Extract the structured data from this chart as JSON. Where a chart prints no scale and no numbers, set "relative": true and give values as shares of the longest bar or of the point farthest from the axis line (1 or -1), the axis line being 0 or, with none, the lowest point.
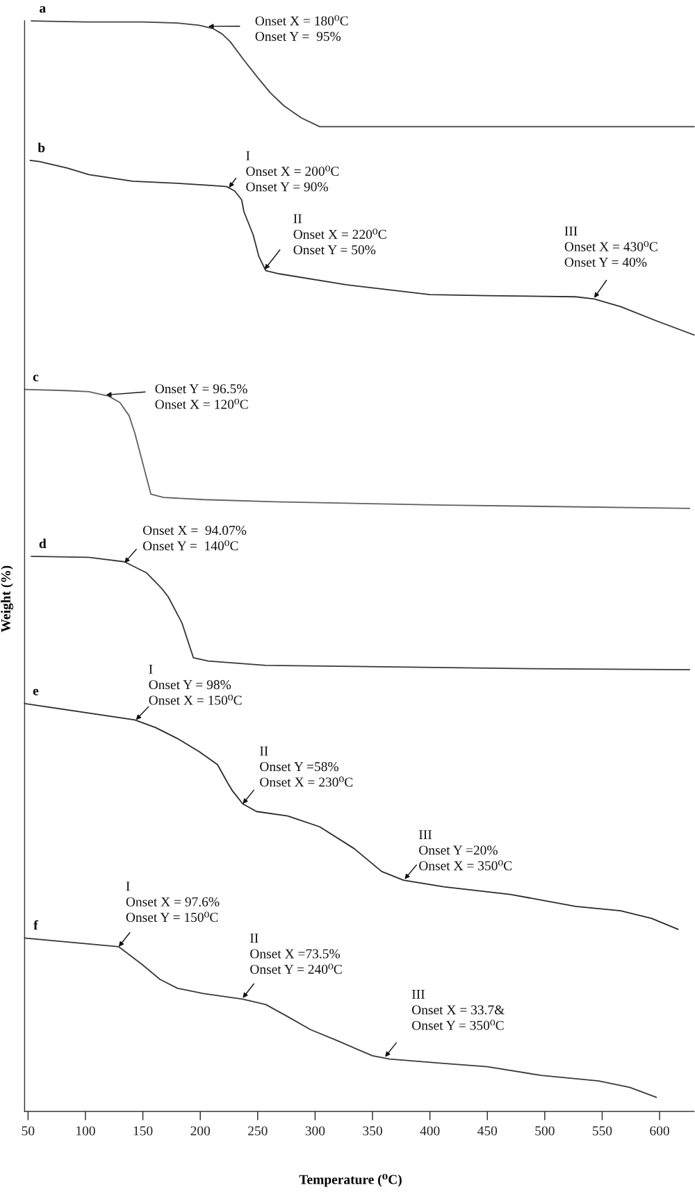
{
  "chart_data": {
    "type": "line",
    "relative": true,
    "xlabel": "Temperature (⁰C)",
    "ylabel": "Weight (%)",
    "xlim": [
      47,
      630
    ],
    "xticks": [
      50,
      100,
      150,
      200,
      250,
      300,
      350,
      400,
      450,
      500,
      550,
      600
    ],
    "tick_labels": "x",
    "line_style": "solid",
    "series": [
      {
        "name": "a",
        "color": "#404040",
        "x": [
          53,
          100,
          150,
          180,
          199,
          211,
          219,
          226,
          238,
          250,
          261,
          273,
          288,
          304,
          400,
          500,
          630
        ],
        "values": [
          1.0,
          0.999,
          0.999,
          0.998,
          0.996,
          0.993,
          0.988,
          0.981,
          0.964,
          0.948,
          0.934,
          0.922,
          0.911,
          0.903,
          0.903,
          0.903,
          0.903
        ]
      },
      {
        "name": "b",
        "color": "#303030",
        "x": [
          52,
          60,
          84,
          103,
          141,
          180,
          211,
          223,
          230,
          236,
          238,
          246,
          251,
          257,
          269,
          327,
          400,
          450,
          527,
          543,
          566,
          597,
          630
        ],
        "values": [
          0.872,
          0.871,
          0.865,
          0.859,
          0.853,
          0.851,
          0.849,
          0.848,
          0.844,
          0.836,
          0.825,
          0.804,
          0.784,
          0.771,
          0.768,
          0.758,
          0.749,
          0.748,
          0.747,
          0.745,
          0.738,
          0.725,
          0.712
        ]
      },
      {
        "name": "c",
        "color": "#606060",
        "x": [
          47,
          83,
          103,
          120,
          130,
          138,
          143,
          149,
          157,
          168,
          203,
          265,
          412,
          626
        ],
        "values": [
          0.662,
          0.661,
          0.66,
          0.656,
          0.65,
          0.638,
          0.622,
          0.598,
          0.566,
          0.563,
          0.561,
          0.559,
          0.556,
          0.553
        ]
      },
      {
        "name": "d",
        "color": "#383838",
        "x": [
          53,
          103,
          134,
          153,
          166,
          172,
          184,
          194,
          207,
          257,
          334,
          489,
          626
        ],
        "values": [
          0.509,
          0.508,
          0.504,
          0.494,
          0.48,
          0.472,
          0.448,
          0.416,
          0.413,
          0.409,
          0.408,
          0.406,
          0.405
        ]
      },
      {
        "name": "e",
        "color": "#2a2a2a",
        "x": [
          47,
          143,
          161,
          180,
          199,
          215,
          224,
          228,
          237,
          249,
          276,
          304,
          334,
          358,
          377,
          412,
          470,
          527,
          566,
          593,
          616
        ],
        "values": [
          0.374,
          0.359,
          0.352,
          0.342,
          0.33,
          0.318,
          0.301,
          0.294,
          0.282,
          0.275,
          0.271,
          0.261,
          0.241,
          0.22,
          0.212,
          0.206,
          0.199,
          0.188,
          0.184,
          0.177,
          0.167
        ]
      },
      {
        "name": "f",
        "color": "#3a3a3a",
        "x": [
          47,
          129,
          149,
          165,
          180,
          203,
          237,
          257,
          276,
          296,
          319,
          350,
          365,
          412,
          450,
          497,
          547,
          574,
          597
        ],
        "values": [
          0.159,
          0.151,
          0.135,
          0.121,
          0.113,
          0.108,
          0.103,
          0.098,
          0.087,
          0.075,
          0.065,
          0.051,
          0.048,
          0.044,
          0.041,
          0.033,
          0.028,
          0.022,
          0.013
        ]
      }
    ],
    "annotations": [
      {
        "text": "Onset X = 180⁰C\nOnset Y =  95%",
        "x": 207,
        "y": 0.995
      },
      {
        "text": "I\nOnset X = 200⁰C\nOnset Y = 90%",
        "x": 225,
        "y": 0.847
      },
      {
        "text": "II\nOnset X = 220⁰C\nOnset Y = 50%",
        "x": 256,
        "y": 0.772
      },
      {
        "text": "III\nOnset X = 430⁰C\nOnset Y = 40%",
        "x": 543,
        "y": 0.746
      },
      {
        "text": "Onset Y = 96.5%\nOnset X = 120⁰C",
        "x": 118,
        "y": 0.657
      },
      {
        "text": "Onset X =  94.07%\nOnset Y =  140⁰C",
        "x": 134,
        "y": 0.503
      },
      {
        "text": "I\nOnset Y = 98%\nOnset X = 150⁰C",
        "x": 144,
        "y": 0.359
      },
      {
        "text": "II\nOnset Y =58%\nOnset X = 230⁰C",
        "x": 237,
        "y": 0.282
      },
      {
        "text": "III\nOnset Y =20%\nOnset X = 350⁰C",
        "x": 378,
        "y": 0.213
      },
      {
        "text": "I\nOnset X = 97.6%\nOnset Y = 150⁰C",
        "x": 129,
        "y": 0.151
      },
      {
        "text": "II\nOnset X =73.5%\nOnset Y = 240⁰C",
        "x": 237,
        "y": 0.104
      },
      {
        "text": "III\nOnset X = 33.7&\nOnset Y = 350⁰C",
        "x": 361,
        "y": 0.05
      }
    ]
  }
}
